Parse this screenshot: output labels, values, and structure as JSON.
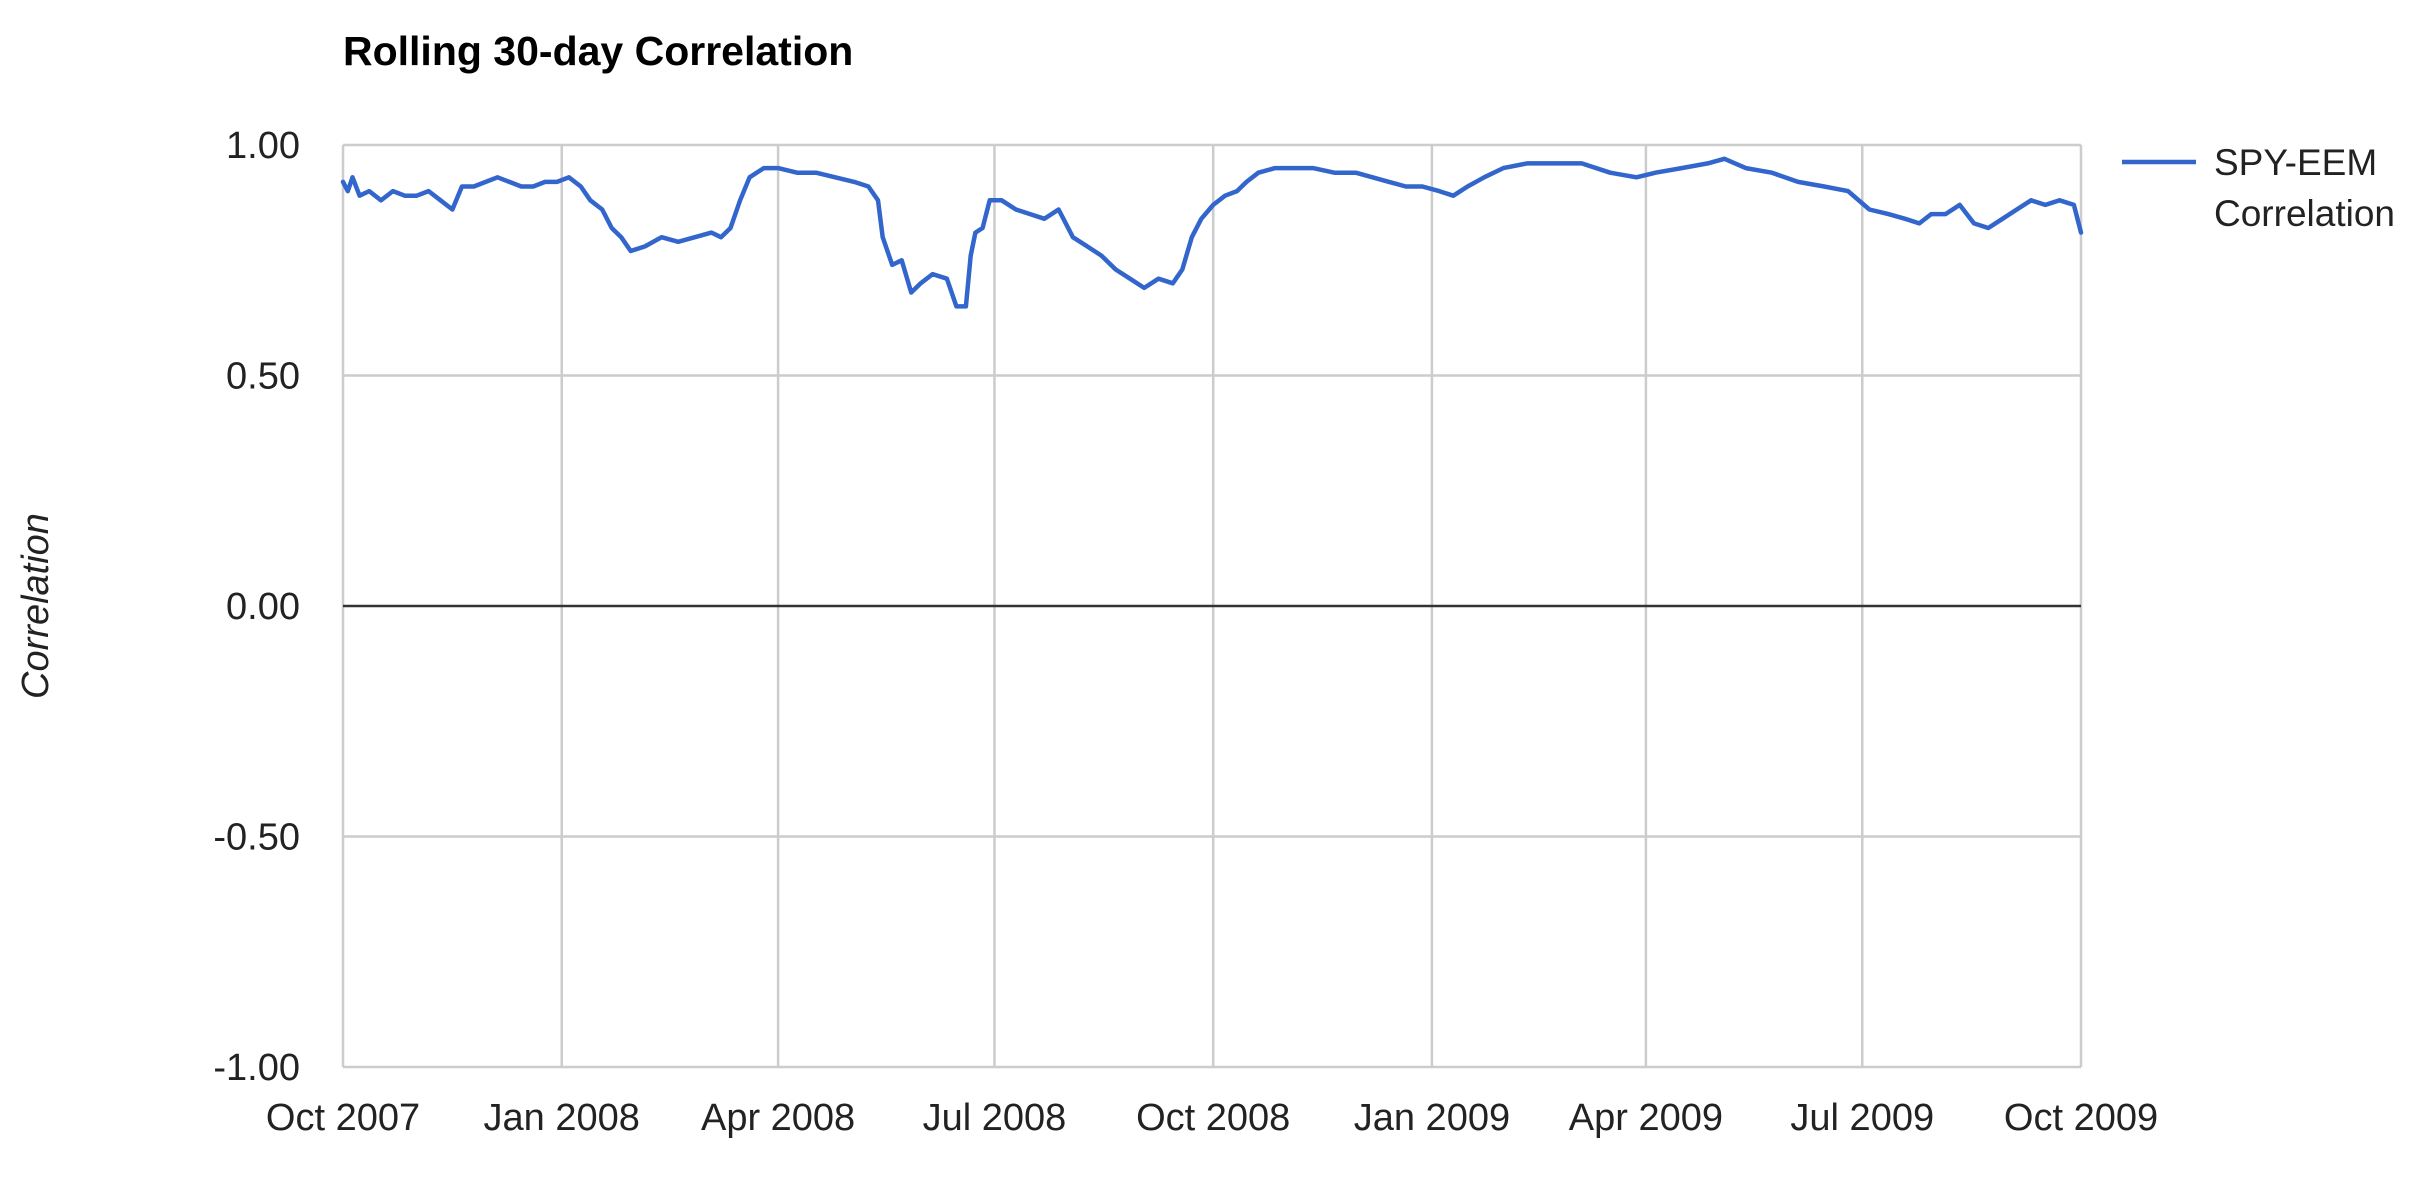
{
  "chart_data": {
    "type": "line",
    "title": "Rolling 30-day Correlation",
    "xlabel": "",
    "ylabel": "Correlation",
    "x_start": "2007-10-01",
    "x_end": "2009-10-01",
    "x_ticks": [
      {
        "date": "2007-10-01",
        "label": "Oct 2007"
      },
      {
        "date": "2008-01-01",
        "label": "Jan 2008"
      },
      {
        "date": "2008-04-01",
        "label": "Apr 2008"
      },
      {
        "date": "2008-07-01",
        "label": "Jul 2008"
      },
      {
        "date": "2008-10-01",
        "label": "Oct 2008"
      },
      {
        "date": "2009-01-01",
        "label": "Jan 2009"
      },
      {
        "date": "2009-04-01",
        "label": "Apr 2009"
      },
      {
        "date": "2009-07-01",
        "label": "Jul 2009"
      },
      {
        "date": "2009-10-01",
        "label": "Oct 2009"
      }
    ],
    "y_ticks": [
      {
        "value": 1.0,
        "label": "1.00"
      },
      {
        "value": 0.5,
        "label": "0.50"
      },
      {
        "value": 0.0,
        "label": "0.00"
      },
      {
        "value": -0.5,
        "label": "-0.50"
      },
      {
        "value": -1.0,
        "label": "-1.00"
      }
    ],
    "ylim": [
      -1.0,
      1.0
    ],
    "grid": true,
    "legend_position": "right",
    "series": [
      {
        "name": "SPY-EEM Correlation",
        "color": "#3366cc",
        "points": [
          [
            "2007-10-01",
            0.92
          ],
          [
            "2007-10-03",
            0.9
          ],
          [
            "2007-10-05",
            0.93
          ],
          [
            "2007-10-08",
            0.89
          ],
          [
            "2007-10-12",
            0.9
          ],
          [
            "2007-10-17",
            0.88
          ],
          [
            "2007-10-22",
            0.9
          ],
          [
            "2007-10-27",
            0.89
          ],
          [
            "2007-11-01",
            0.89
          ],
          [
            "2007-11-06",
            0.9
          ],
          [
            "2007-11-11",
            0.88
          ],
          [
            "2007-11-16",
            0.86
          ],
          [
            "2007-11-20",
            0.91
          ],
          [
            "2007-11-25",
            0.91
          ],
          [
            "2007-11-30",
            0.92
          ],
          [
            "2007-12-05",
            0.93
          ],
          [
            "2007-12-10",
            0.92
          ],
          [
            "2007-12-15",
            0.91
          ],
          [
            "2007-12-20",
            0.91
          ],
          [
            "2007-12-25",
            0.92
          ],
          [
            "2007-12-30",
            0.92
          ],
          [
            "2008-01-04",
            0.93
          ],
          [
            "2008-01-09",
            0.91
          ],
          [
            "2008-01-13",
            0.88
          ],
          [
            "2008-01-18",
            0.86
          ],
          [
            "2008-01-22",
            0.82
          ],
          [
            "2008-01-26",
            0.8
          ],
          [
            "2008-01-30",
            0.77
          ],
          [
            "2008-02-05",
            0.78
          ],
          [
            "2008-02-12",
            0.8
          ],
          [
            "2008-02-19",
            0.79
          ],
          [
            "2008-02-26",
            0.8
          ],
          [
            "2008-03-04",
            0.81
          ],
          [
            "2008-03-08",
            0.8
          ],
          [
            "2008-03-12",
            0.82
          ],
          [
            "2008-03-16",
            0.88
          ],
          [
            "2008-03-20",
            0.93
          ],
          [
            "2008-03-26",
            0.95
          ],
          [
            "2008-04-01",
            0.95
          ],
          [
            "2008-04-09",
            0.94
          ],
          [
            "2008-04-17",
            0.94
          ],
          [
            "2008-04-25",
            0.93
          ],
          [
            "2008-05-03",
            0.92
          ],
          [
            "2008-05-09",
            0.91
          ],
          [
            "2008-05-13",
            0.88
          ],
          [
            "2008-05-15",
            0.8
          ],
          [
            "2008-05-19",
            0.74
          ],
          [
            "2008-05-23",
            0.75
          ],
          [
            "2008-05-27",
            0.68
          ],
          [
            "2008-05-31",
            0.7
          ],
          [
            "2008-06-05",
            0.72
          ],
          [
            "2008-06-11",
            0.71
          ],
          [
            "2008-06-15",
            0.65
          ],
          [
            "2008-06-19",
            0.65
          ],
          [
            "2008-06-21",
            0.76
          ],
          [
            "2008-06-23",
            0.81
          ],
          [
            "2008-06-26",
            0.82
          ],
          [
            "2008-06-29",
            0.88
          ],
          [
            "2008-07-04",
            0.88
          ],
          [
            "2008-07-10",
            0.86
          ],
          [
            "2008-07-16",
            0.85
          ],
          [
            "2008-07-22",
            0.84
          ],
          [
            "2008-07-28",
            0.86
          ],
          [
            "2008-08-03",
            0.8
          ],
          [
            "2008-08-09",
            0.78
          ],
          [
            "2008-08-15",
            0.76
          ],
          [
            "2008-08-21",
            0.73
          ],
          [
            "2008-08-27",
            0.71
          ],
          [
            "2008-09-02",
            0.69
          ],
          [
            "2008-09-08",
            0.71
          ],
          [
            "2008-09-14",
            0.7
          ],
          [
            "2008-09-18",
            0.73
          ],
          [
            "2008-09-22",
            0.8
          ],
          [
            "2008-09-26",
            0.84
          ],
          [
            "2008-10-01",
            0.87
          ],
          [
            "2008-10-06",
            0.89
          ],
          [
            "2008-10-11",
            0.9
          ],
          [
            "2008-10-15",
            0.92
          ],
          [
            "2008-10-20",
            0.94
          ],
          [
            "2008-10-27",
            0.95
          ],
          [
            "2008-11-03",
            0.95
          ],
          [
            "2008-11-12",
            0.95
          ],
          [
            "2008-11-21",
            0.94
          ],
          [
            "2008-11-30",
            0.94
          ],
          [
            "2008-12-07",
            0.93
          ],
          [
            "2008-12-14",
            0.92
          ],
          [
            "2008-12-21",
            0.91
          ],
          [
            "2008-12-28",
            0.91
          ],
          [
            "2009-01-04",
            0.9
          ],
          [
            "2009-01-10",
            0.89
          ],
          [
            "2009-01-16",
            0.91
          ],
          [
            "2009-01-23",
            0.93
          ],
          [
            "2009-01-31",
            0.95
          ],
          [
            "2009-02-10",
            0.96
          ],
          [
            "2009-02-22",
            0.96
          ],
          [
            "2009-03-05",
            0.96
          ],
          [
            "2009-03-17",
            0.94
          ],
          [
            "2009-03-28",
            0.93
          ],
          [
            "2009-04-05",
            0.94
          ],
          [
            "2009-04-16",
            0.95
          ],
          [
            "2009-04-27",
            0.96
          ],
          [
            "2009-05-04",
            0.97
          ],
          [
            "2009-05-13",
            0.95
          ],
          [
            "2009-05-24",
            0.94
          ],
          [
            "2009-06-04",
            0.92
          ],
          [
            "2009-06-15",
            0.91
          ],
          [
            "2009-06-25",
            0.9
          ],
          [
            "2009-07-04",
            0.86
          ],
          [
            "2009-07-12",
            0.85
          ],
          [
            "2009-07-19",
            0.84
          ],
          [
            "2009-07-25",
            0.83
          ],
          [
            "2009-07-30",
            0.85
          ],
          [
            "2009-08-05",
            0.85
          ],
          [
            "2009-08-11",
            0.87
          ],
          [
            "2009-08-17",
            0.83
          ],
          [
            "2009-08-23",
            0.82
          ],
          [
            "2009-08-29",
            0.84
          ],
          [
            "2009-09-04",
            0.86
          ],
          [
            "2009-09-10",
            0.88
          ],
          [
            "2009-09-16",
            0.87
          ],
          [
            "2009-09-22",
            0.88
          ],
          [
            "2009-09-28",
            0.87
          ],
          [
            "2009-10-01",
            0.81
          ]
        ]
      }
    ]
  }
}
